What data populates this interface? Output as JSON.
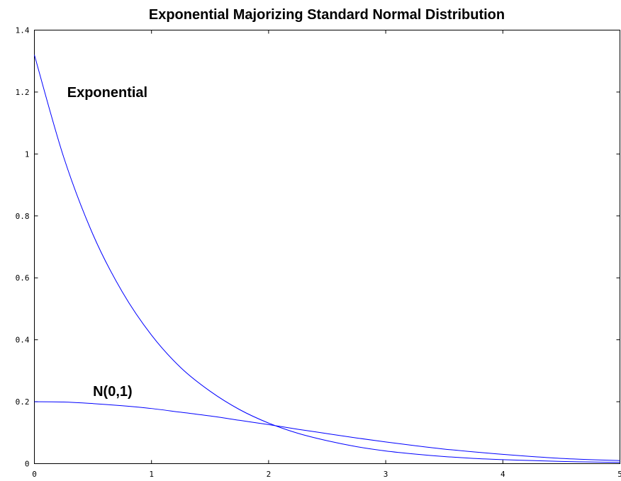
{
  "chart_data": {
    "type": "line",
    "title": "Exponential Majorizing Standard Normal Distribution",
    "xlabel": "",
    "ylabel": "",
    "xlim": [
      0,
      5
    ],
    "ylim": [
      0,
      1.4
    ],
    "x_ticks": [
      0,
      1,
      2,
      3,
      4,
      5
    ],
    "y_ticks": [
      0,
      0.2,
      0.4,
      0.6,
      0.8,
      1,
      1.2,
      1.4
    ],
    "x_tick_labels": [
      "0",
      "1",
      "2",
      "3",
      "4",
      "5"
    ],
    "y_tick_labels": [
      "0",
      "0.2",
      "0.4",
      "0.6",
      "0.8",
      "1",
      "1.2",
      "1.4"
    ],
    "grid": false,
    "line_color": "#0000ff",
    "series": [
      {
        "x": [
          0,
          0.25,
          0.5,
          0.75,
          1,
          1.25,
          1.5,
          1.75,
          2,
          2.25,
          2.5,
          2.75,
          3,
          3.25,
          3.5,
          3.75,
          4,
          4.25,
          4.5,
          4.75,
          5
        ],
        "values": [
          1.32,
          0.99,
          0.74,
          0.555,
          0.415,
          0.31,
          0.234,
          0.175,
          0.131,
          0.098,
          0.074,
          0.055,
          0.041,
          0.031,
          0.023,
          0.017,
          0.013,
          0.01,
          0.0072,
          0.0054,
          0.004
        ]
      },
      {
        "x": [
          0,
          0.25,
          0.5,
          0.75,
          1,
          1.25,
          1.5,
          1.75,
          2,
          2.25,
          2.5,
          2.75,
          3,
          3.25,
          3.5,
          3.75,
          4,
          4.25,
          4.5,
          4.75,
          5
        ],
        "values": [
          0.2,
          0.199,
          0.194,
          0.187,
          0.178,
          0.166,
          0.154,
          0.14,
          0.126,
          0.111,
          0.097,
          0.083,
          0.07,
          0.058,
          0.047,
          0.038,
          0.03,
          0.023,
          0.017,
          0.013,
          0.01
        ]
      }
    ],
    "annotations": [
      {
        "text": "Exponential",
        "x": 0.28,
        "y": 1.2
      },
      {
        "text": "N(0,1)",
        "x": 0.5,
        "y": 0.235
      }
    ]
  }
}
